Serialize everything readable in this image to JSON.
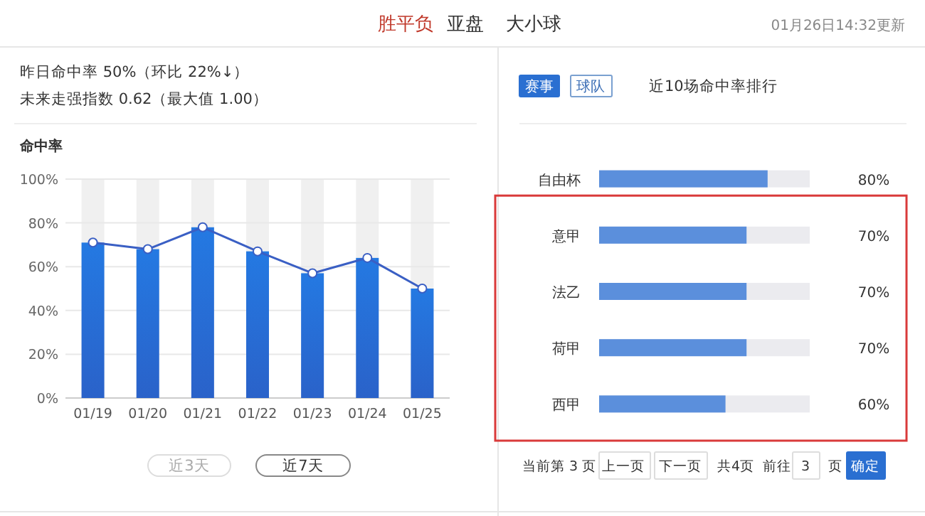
{
  "chart_data": [
    {
      "type": "bar",
      "title": "命中率",
      "categories": [
        "01/19",
        "01/20",
        "01/21",
        "01/22",
        "01/23",
        "01/24",
        "01/25"
      ],
      "series": [
        {
          "type": "bar",
          "color": "#2479e2",
          "values": [
            71,
            68,
            78,
            67,
            57,
            64,
            50
          ]
        },
        {
          "type": "line",
          "color": "#3a5fc4",
          "values": [
            71,
            68,
            78,
            67,
            57,
            64,
            50
          ]
        }
      ],
      "ylim": [
        0,
        100
      ],
      "yticks": [
        {
          "value": 0,
          "label": "0%"
        },
        {
          "value": 20,
          "label": "20%"
        },
        {
          "value": 40,
          "label": "40%"
        },
        {
          "value": 60,
          "label": "60%"
        },
        {
          "value": 80,
          "label": "80%"
        },
        {
          "value": 100,
          "label": "100%"
        }
      ],
      "grid": "y",
      "marker": "circle",
      "annotations": [
        "胜平负",
        "亚盘",
        "大小球",
        "01月26日14:32更新",
        "昨日命中率 50%（环比 22%↓）",
        "未来走强指数 0.62（最大值 1.00）",
        "近3天",
        "近7天"
      ]
    },
    {
      "type": "bar",
      "orientation": "horizontal",
      "title": "近10场命中率排行",
      "categories": [
        "自由杯",
        "意甲",
        "法乙",
        "荷甲",
        "西甲"
      ],
      "values": [
        80,
        70,
        70,
        70,
        60
      ],
      "color": "#5b8fdc",
      "xlim": [
        0,
        100
      ],
      "tick_labels": "y",
      "value_labels": [
        "80%",
        "70%",
        "70%",
        "70%",
        "60%"
      ],
      "annotations": [
        "赛事",
        "球队",
        "当前第 3 页",
        "上一页",
        "下一页",
        "共4页",
        "前往",
        "3",
        "页",
        "确定"
      ]
    }
  ]
}
